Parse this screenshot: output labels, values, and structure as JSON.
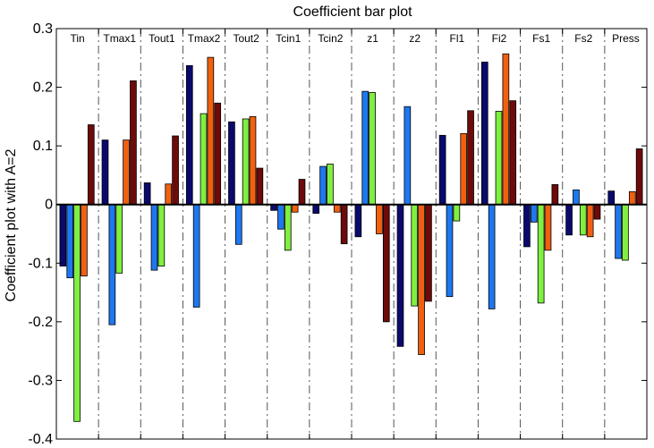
{
  "chart_data": {
    "type": "bar",
    "title": "Coefficient bar plot",
    "xlabel": "",
    "ylabel": "Coefficient plot with A=2",
    "ylim": [
      -0.4,
      0.3
    ],
    "yticks": [
      "0.3",
      "0.2",
      "0.1",
      "0",
      "-0.1",
      "-0.2",
      "-0.3",
      "-0.4"
    ],
    "grid": false,
    "categories": [
      "Tin",
      "Tmax1",
      "Tout1",
      "Tmax2",
      "Tout2",
      "Tcin1",
      "Tcin2",
      "z1",
      "z2",
      "Fl1",
      "Fi2",
      "Fs1",
      "Fs2",
      "Press"
    ],
    "series": [
      {
        "color": "#0a0a6e",
        "values": [
          -0.105,
          0.11,
          0.037,
          0.237,
          0.141,
          -0.01,
          -0.015,
          -0.055,
          -0.242,
          0.118,
          0.243,
          -0.072,
          -0.052,
          0.023
        ]
      },
      {
        "color": "#1e78f0",
        "values": [
          -0.125,
          -0.205,
          -0.112,
          -0.175,
          -0.068,
          -0.042,
          0.065,
          0.193,
          0.167,
          -0.157,
          -0.178,
          -0.03,
          0.025,
          -0.092
        ]
      },
      {
        "color": "#80f040",
        "values": [
          -0.37,
          -0.117,
          -0.105,
          0.155,
          0.146,
          -0.078,
          0.069,
          0.191,
          -0.173,
          -0.028,
          0.159,
          -0.168,
          -0.052,
          -0.095
        ]
      },
      {
        "color": "#f06010",
        "values": [
          -0.122,
          0.11,
          0.035,
          0.251,
          0.15,
          -0.013,
          -0.013,
          -0.05,
          -0.256,
          0.121,
          0.257,
          -0.078,
          -0.055,
          0.022
        ]
      },
      {
        "color": "#6e0a0a",
        "values": [
          0.136,
          0.211,
          0.117,
          0.173,
          0.062,
          0.043,
          -0.067,
          -0.2,
          -0.165,
          0.16,
          0.177,
          0.034,
          -0.025,
          0.095
        ]
      }
    ]
  }
}
